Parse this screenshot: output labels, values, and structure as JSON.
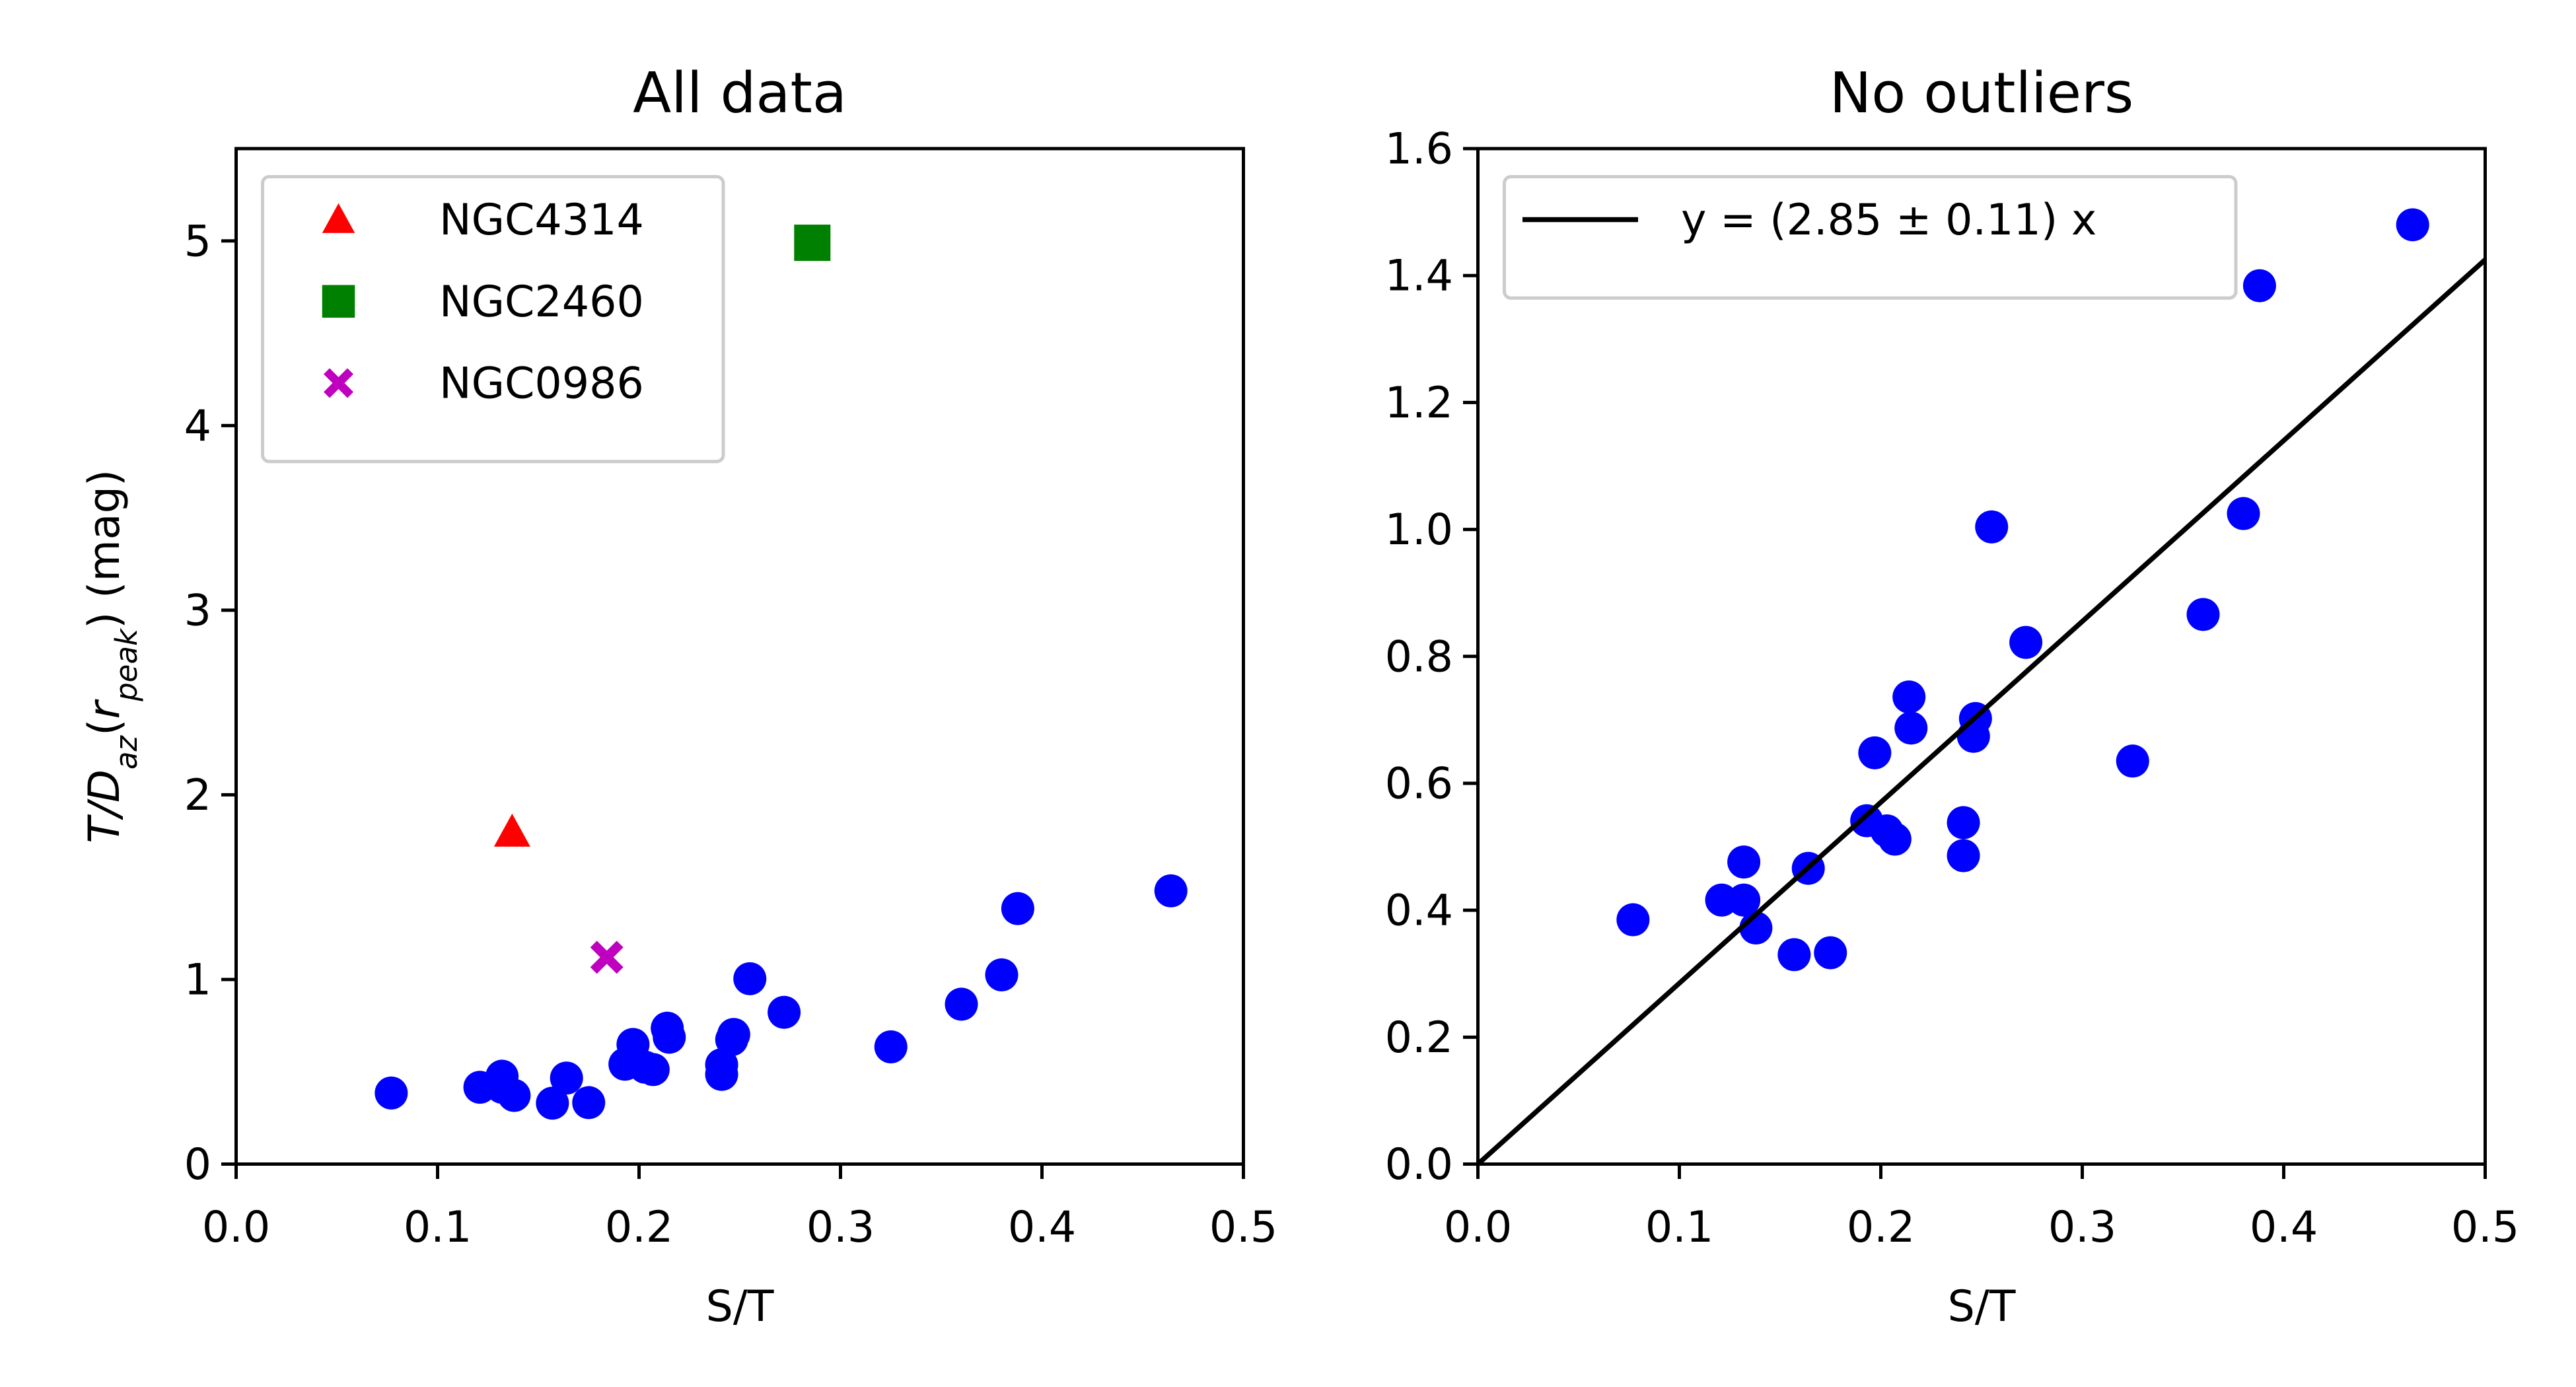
{
  "chart_data": [
    {
      "type": "scatter",
      "title": "All data",
      "x_label": "S/T",
      "y_label": [
        {
          "text": "T/D",
          "italic": true
        },
        {
          "text": "az",
          "italic": true,
          "sub": true
        },
        {
          "text": "(",
          "italic": false
        },
        {
          "text": "r",
          "italic": true
        },
        {
          "text": "peak",
          "italic": true,
          "sub": true
        },
        {
          "text": ") (mag)",
          "italic": false
        }
      ],
      "xlim": [
        0,
        0.5
      ],
      "ylim": [
        0,
        5.5
      ],
      "xticks": [
        {
          "value": 0,
          "label": "0.0"
        },
        0.1,
        0.2,
        0.3,
        0.4,
        0.5
      ],
      "yticks": [
        0,
        1,
        2,
        3,
        4,
        5
      ],
      "legend": "upper left",
      "series": [
        {
          "color": "#0000ff",
          "marker": "circle",
          "x": [
            0.077,
            0.121,
            0.132,
            0.132,
            0.138,
            0.164,
            0.157,
            0.175,
            0.193,
            0.197,
            0.203,
            0.207,
            0.214,
            0.215,
            0.241,
            0.241,
            0.246,
            0.247,
            0.255,
            0.272,
            0.325,
            0.36,
            0.38,
            0.388,
            0.464
          ],
          "values": [
            0.385,
            0.416,
            0.476,
            0.416,
            0.372,
            0.466,
            0.33,
            0.333,
            0.541,
            0.648,
            0.525,
            0.512,
            0.736,
            0.687,
            0.538,
            0.486,
            0.674,
            0.702,
            1.004,
            0.822,
            0.635,
            0.866,
            1.025,
            1.384,
            1.48
          ]
        },
        {
          "name": "NGC4314",
          "color": "#ff0000",
          "marker": "triangle",
          "x": [
            0.137
          ],
          "values": [
            1.8
          ]
        },
        {
          "name": "NGC2460",
          "color": "#008000",
          "marker": "square",
          "x": [
            0.286
          ],
          "values": [
            4.99
          ]
        },
        {
          "name": "NGC0986",
          "color": "#bf00bf",
          "marker": "x",
          "x": [
            0.184
          ],
          "values": [
            1.12
          ]
        }
      ]
    },
    {
      "type": "scatter",
      "title": "No outliers",
      "x_label": "S/T",
      "xlim": [
        0,
        0.5
      ],
      "ylim": [
        0,
        1.6
      ],
      "xticks": [
        {
          "value": 0,
          "label": "0.0"
        },
        0.1,
        0.2,
        0.3,
        0.4,
        0.5
      ],
      "yticks": [
        {
          "value": 0,
          "label": "0.0"
        },
        0.2,
        0.4,
        0.6,
        0.8,
        {
          "value": 1,
          "label": "1.0"
        },
        1.2,
        1.4,
        1.6
      ],
      "legend": "upper left",
      "series": [
        {
          "color": "#0000ff",
          "marker": "circle",
          "x": [
            0.077,
            0.121,
            0.132,
            0.132,
            0.138,
            0.164,
            0.157,
            0.175,
            0.193,
            0.197,
            0.203,
            0.207,
            0.214,
            0.215,
            0.241,
            0.241,
            0.246,
            0.247,
            0.255,
            0.272,
            0.325,
            0.36,
            0.38,
            0.388,
            0.464
          ],
          "values": [
            0.385,
            0.416,
            0.476,
            0.416,
            0.372,
            0.466,
            0.33,
            0.333,
            0.541,
            0.648,
            0.525,
            0.512,
            0.736,
            0.687,
            0.538,
            0.486,
            0.674,
            0.702,
            1.004,
            0.822,
            0.635,
            0.866,
            1.025,
            1.384,
            1.48
          ]
        },
        {
          "name": "y = (2.85 ± 0.11) x",
          "color": "#000000",
          "marker": "line",
          "x": [
            0,
            0.5
          ],
          "values": [
            0,
            1.425
          ]
        }
      ]
    }
  ]
}
